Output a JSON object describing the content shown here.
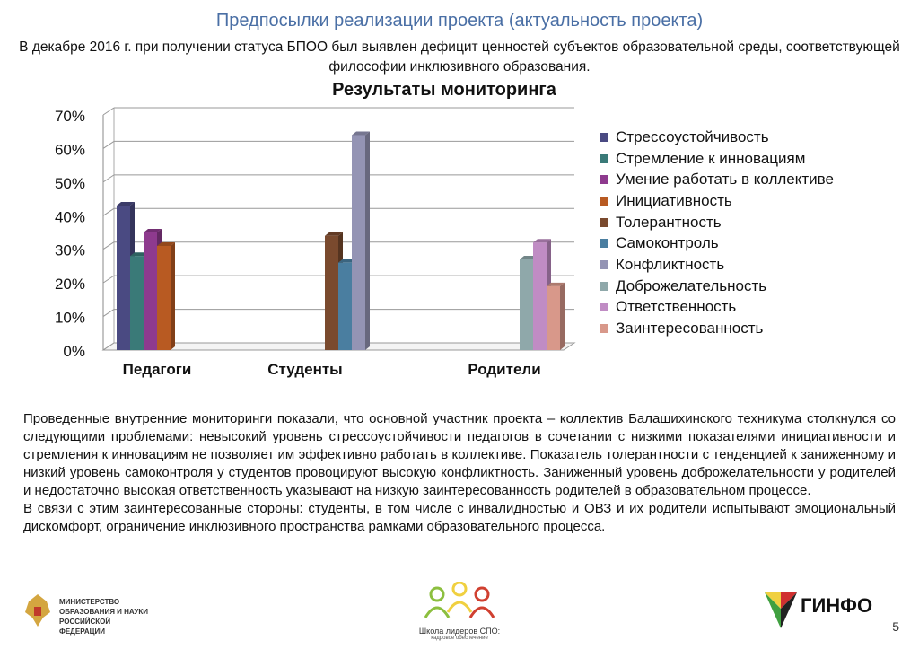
{
  "slide": {
    "title": "Предпосылки реализации проекта (актуальность проекта)",
    "subtitle": "В декабре 2016 г. при получении статуса БПОО  был выявлен дефицит ценностей субъектов образовательной среды, соответствующей философии инклюзивного образования.",
    "paragraph1": "Проведенные внутренние мониторинги показали, что основной участник проекта – коллектив Балашихинского техникума столкнулся со следующими проблемами: невысокий уровень стрессоустойчивости педагогов в сочетании с низкими показателями инициативности и стремления к инновациям не позволяет им эффективно работать в коллективе. Показатель толерантности с тенденцией к заниженному и низкий уровень самоконтроля у студентов провоцируют высокую конфликтность. Заниженный уровень доброжелательности у родителей и недостаточно высокая ответственность указывают на низкую заинтересованность родителей в образовательном процессе.",
    "paragraph2": "В связи с этим заинтересованные стороны: студенты, в том числе с инвалидностью и ОВЗ и их родители испытывают эмоциональный дискомфорт, ограничение инклюзивного пространства рамками образовательного процесса.",
    "page_number": "5"
  },
  "logos": {
    "ministry": "МИНИСТЕРСТВО ОБРАЗОВАНИЯ И НАУКИ РОССИЙСКОЙ ФЕДЕРАЦИИ",
    "school": "Школа лидеров СПО:",
    "school_sub": "кадровое обеспечение",
    "ginfo": "ГИНФО"
  },
  "chart_data": {
    "type": "bar",
    "title": "Результаты мониторинга",
    "categories": [
      "Педагоги",
      "Студенты",
      "Родители"
    ],
    "ylim": [
      0,
      70
    ],
    "yticks": [
      "0%",
      "10%",
      "20%",
      "30%",
      "40%",
      "50%",
      "60%",
      "70%"
    ],
    "grid": true,
    "legend_position": "right",
    "series": [
      {
        "name": "Стрессоустойчивость",
        "color": "#4a4a82",
        "values": [
          43,
          null,
          null
        ]
      },
      {
        "name": "Стремление к инновациям",
        "color": "#3a7a78",
        "values": [
          28,
          null,
          null
        ]
      },
      {
        "name": "Умение работать в коллективе",
        "color": "#8e3a8e",
        "values": [
          35,
          null,
          null
        ]
      },
      {
        "name": "Инициативность",
        "color": "#b85a22",
        "values": [
          31,
          null,
          null
        ]
      },
      {
        "name": "Толерантность",
        "color": "#7a4a2e",
        "values": [
          null,
          34,
          null
        ]
      },
      {
        "name": "Самоконтроль",
        "color": "#4a7ea0",
        "values": [
          null,
          26,
          null
        ]
      },
      {
        "name": "Конфликтность",
        "color": "#9494b4",
        "values": [
          null,
          64,
          null
        ]
      },
      {
        "name": "Доброжелательность",
        "color": "#8fa8aa",
        "values": [
          null,
          null,
          27
        ]
      },
      {
        "name": "Ответственность",
        "color": "#c08cc4",
        "values": [
          null,
          null,
          32
        ]
      },
      {
        "name": "Заинтересованность",
        "color": "#d8988a",
        "values": [
          null,
          null,
          19
        ]
      }
    ]
  }
}
